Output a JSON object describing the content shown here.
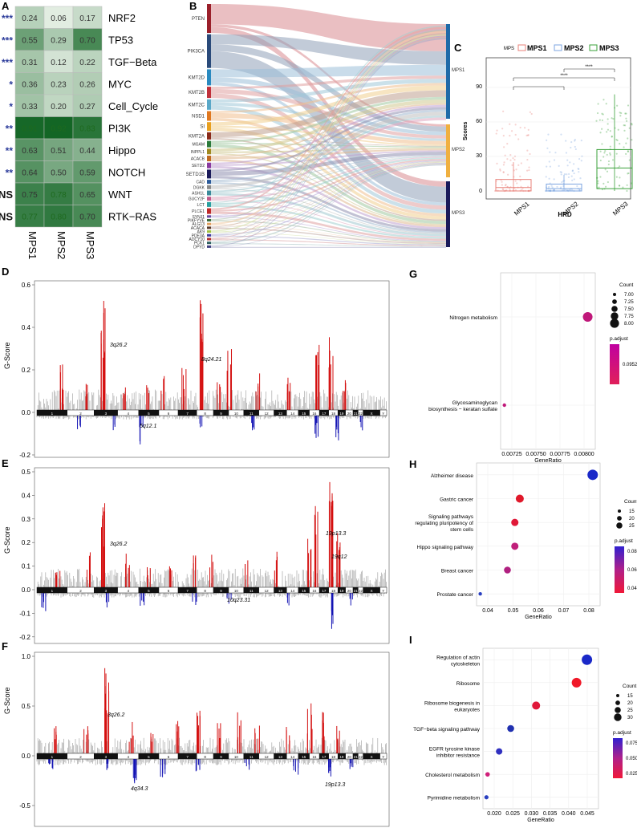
{
  "panel_labels": [
    "A",
    "B",
    "C",
    "D",
    "E",
    "F",
    "G",
    "H",
    "I"
  ],
  "heatmap": {
    "columns": [
      "MPS1",
      "MPS2",
      "MPS3"
    ],
    "rows": [
      {
        "name": "NRF2",
        "sig": "***",
        "values": [
          0.24,
          0.06,
          0.17
        ]
      },
      {
        "name": "TP53",
        "sig": "***",
        "values": [
          0.55,
          0.29,
          0.7
        ]
      },
      {
        "name": "TGF−Beta",
        "sig": "***",
        "values": [
          0.31,
          0.12,
          0.22
        ]
      },
      {
        "name": "MYC",
        "sig": "*",
        "values": [
          0.36,
          0.23,
          0.26
        ]
      },
      {
        "name": "Cell_Cycle",
        "sig": "*",
        "values": [
          0.33,
          0.2,
          0.27
        ]
      },
      {
        "name": "PI3K",
        "sig": "**",
        "values": [
          0.91,
          0.92,
          0.83
        ]
      },
      {
        "name": "Hippo",
        "sig": "**",
        "values": [
          0.63,
          0.51,
          0.44
        ]
      },
      {
        "name": "NOTCH",
        "sig": "**",
        "values": [
          0.64,
          0.5,
          0.59
        ]
      },
      {
        "name": "WNT",
        "sig": "NS",
        "values": [
          0.75,
          0.78,
          0.65
        ]
      },
      {
        "name": "RTK−RAS",
        "sig": "NS",
        "values": [
          0.77,
          0.8,
          0.7
        ]
      }
    ]
  },
  "sankey": {
    "genes": [
      "PTEN",
      "PIK3CA",
      "KMT2D",
      "KMT2B",
      "KMT2C",
      "NSD1",
      "SI",
      "KMT2A",
      "MGAM",
      "INPPL1",
      "ACACB",
      "SETD2",
      "SETD1B",
      "CAD",
      "DGKK",
      "ASH1L",
      "GUCY2F",
      "LCT",
      "PLCE1",
      "SYNJ1",
      "PIKFYVE",
      "ALG13",
      "ACACA",
      "AK9",
      "PDE3A",
      "ADCY10",
      "PCK1",
      "DPYD"
    ],
    "targets": [
      "MPS1",
      "MPS2",
      "MPS3"
    ]
  },
  "boxplot": {
    "legend_title": "MPS",
    "groups": [
      "MPS1",
      "MPS2",
      "MPS3"
    ],
    "colors": [
      "#e8827a",
      "#7ea6e0",
      "#3aa13a"
    ],
    "ylabel": "Scores",
    "xlabel": "HRD",
    "yticks": [
      "0",
      "30",
      "60",
      "90"
    ],
    "stars": [
      "****",
      "****"
    ],
    "stats": [
      {
        "q1": 0,
        "median": 3,
        "q3": 10,
        "whisker_low": 0,
        "whisker_high": 25
      },
      {
        "q1": 0,
        "median": 2,
        "q3": 6,
        "whisker_low": 0,
        "whisker_high": 14
      },
      {
        "q1": 2,
        "median": 20,
        "q3": 36,
        "whisker_low": 0,
        "whisker_high": 84
      }
    ]
  },
  "gistic": {
    "ylabel": "G-Score",
    "chromosomes": [
      "1",
      "2",
      "3",
      "4",
      "5",
      "6",
      "7",
      "8",
      "9",
      "10",
      "11",
      "12",
      "13",
      "14",
      "15",
      "16",
      "17",
      "18",
      "19",
      "20",
      "21",
      "22",
      "X",
      "Y"
    ],
    "D": {
      "yticks": [
        "0.6",
        "0.4",
        "0.2",
        "0.0",
        "-0.2"
      ],
      "peaks": [
        "3q26.2",
        "8q24.21",
        "5q12.1"
      ]
    },
    "E": {
      "yticks": [
        "0.5",
        "0.4",
        "0.3",
        "0.2",
        "0.1",
        "0.0",
        "-0.1",
        "-0.2"
      ],
      "peaks": [
        "3q26.2",
        "19p13.3",
        "19q12",
        "10q23.31"
      ]
    },
    "F": {
      "yticks": [
        "1.0",
        "0.5",
        "0.0",
        "-0.5",
        "-1.0"
      ],
      "peaks": [
        "3q26.2",
        "4q34.3",
        "19p13.3"
      ]
    }
  },
  "enrichment": {
    "xlabel": "GeneRatio",
    "count_title": "Count",
    "padj_title": "p.adjust",
    "G": {
      "terms": [
        "Nitrogen metabolism",
        "Glycosaminoglycan biosynthesis − keratan sulfate"
      ],
      "xticks": [
        "0.00725",
        "0.00750",
        "0.00775",
        "0.00800"
      ],
      "count_labels": [
        "7.00",
        "7.25",
        "7.50",
        "7.75",
        "8.00"
      ],
      "padj_labels": [
        "0.095249"
      ]
    },
    "H": {
      "terms": [
        "Alzheimer disease",
        "Gastric cancer",
        "Signaling pathways regulating pluripotency of stem cells",
        "Hippo signaling pathway",
        "Breast cancer",
        "Prostate cancer"
      ],
      "xticks": [
        "0.04",
        "0.05",
        "0.06",
        "0.07",
        "0.08"
      ],
      "count_labels": [
        "15",
        "20",
        "25"
      ],
      "padj_labels": [
        "0.08",
        "0.06",
        "0.04"
      ]
    },
    "I": {
      "terms": [
        "Regulation of actin cytoskeleton",
        "Ribosome",
        "Ribosome biogenesis in eukaryotes",
        "TGF−beta signaling pathway",
        "EGFR tyrosine kinase inhibitor resistance",
        "Cholesterol metabolism",
        "Pyrimidine metabolism"
      ],
      "xticks": [
        "0.020",
        "0.025",
        "0.030",
        "0.035",
        "0.040",
        "0.045"
      ],
      "count_labels": [
        "15",
        "20",
        "25",
        "30"
      ],
      "padj_labels": [
        "0.075",
        "0.050",
        "0.025"
      ]
    }
  }
}
